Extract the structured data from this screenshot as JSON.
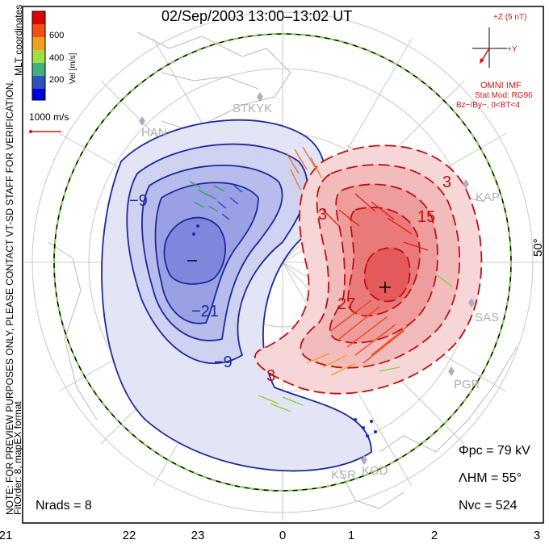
{
  "title": "02/Sep/2003 13:00–13:02 UT",
  "side_note": {
    "line1": "NOTE: FOR PREVIEW PURPOSES ONLY, PLEASE CONTACT VT-SD STAFF FOR VERIFICATION.",
    "line2": "FitOrder: 8, mapEX format",
    "mlt": "MLT coordinates"
  },
  "colorbar": {
    "label": "Vel [m/s]",
    "ticks": [
      "600",
      "400",
      "200"
    ],
    "colors": [
      "#e00000",
      "#f05010",
      "#f0a020",
      "#a0e040",
      "#40b080",
      "#3050c0",
      "#0000e0"
    ]
  },
  "vector_scale": {
    "label": "1000 m/s"
  },
  "imf": {
    "z_label": "+Z (5 nT)",
    "y_label": "+Y",
    "model_lines": [
      "OMNI IMF",
      "Stat Mod: RG96",
      "Bz−/By−, 0<BT<4"
    ]
  },
  "latitude_label": "50°",
  "stats": {
    "phi_pc": "Φpc = 79 kV",
    "lambda_hm": "ΛHM = 55°",
    "n_vc": "Nvc = 524",
    "n_rads": "Nrads = 8"
  },
  "mlt_ticks": [
    "21",
    "22",
    "23",
    "0",
    "1",
    "2",
    "3"
  ],
  "contour_labels": {
    "neg": [
      "−9",
      "−21",
      "−9"
    ],
    "pos": [
      "3",
      "15",
      "27",
      "3",
      "3"
    ]
  },
  "extrema": {
    "min": "−",
    "max": "+"
  },
  "stations": [
    "HAN",
    "STKYK",
    "KAP",
    "SAS",
    "PGR",
    "KSR",
    "KOD"
  ]
}
